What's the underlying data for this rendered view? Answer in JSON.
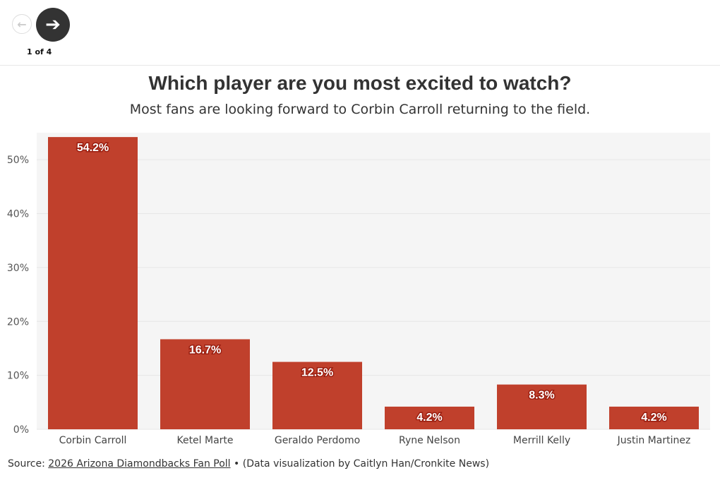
{
  "nav": {
    "prev_icon": "arrow-left-icon",
    "next_icon": "arrow-right-icon",
    "pager": "1 of 4"
  },
  "header": {
    "title": "Which player are you most excited to watch?",
    "subtitle": "Most fans are looking forward to Corbin Carroll returning to the field."
  },
  "source": {
    "prefix": "Source: ",
    "link": "2026 Arizona Diamondbacks Fan Poll",
    "suffix": " • (Data visualization by Caitlyn Han/Cronkite News)"
  },
  "chart_data": {
    "type": "bar",
    "title": "Which player are you most excited to watch?",
    "categories": [
      "Corbin Carroll",
      "Ketel Marte",
      "Geraldo Perdomo",
      "Ryne Nelson",
      "Merrill Kelly",
      "Justin Martinez"
    ],
    "values": [
      54.2,
      16.7,
      12.5,
      4.2,
      8.3,
      4.2
    ],
    "data_labels": [
      "54.2%",
      "16.7%",
      "12.5%",
      "4.2%",
      "8.3%",
      "4.2%"
    ],
    "yticks": [
      0,
      10,
      20,
      30,
      40,
      50
    ],
    "ytick_labels": [
      "0%",
      "10%",
      "20%",
      "30%",
      "40%",
      "50%"
    ],
    "ylim": [
      0,
      55
    ],
    "grid": true,
    "bar_color": "#c0402c",
    "background": "#f5f5f5"
  }
}
